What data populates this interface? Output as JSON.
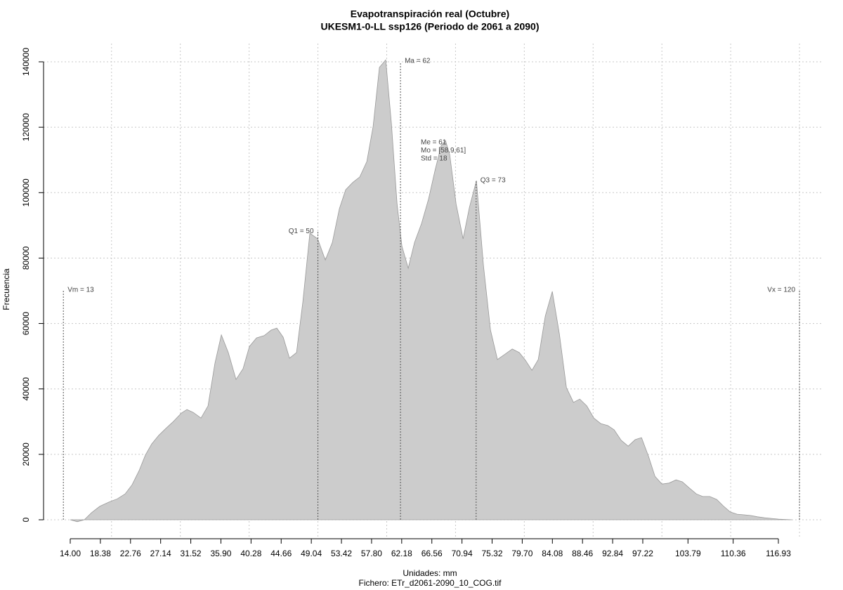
{
  "chart_data": {
    "type": "area",
    "title": "Evapotranspiración real (Octubre)",
    "subtitle": "UKESM1-0-LL ssp126 (Periodo de 2061 a 2090)",
    "x_label": "Unidades: mm",
    "caption": "Fichero: ETr_d2061-2090_10_COG.tif",
    "y_label": "Frecuencia",
    "color": "#cccccc",
    "line_color": "#999999",
    "grid": true,
    "x": [
      14.0,
      15.02,
      16.04,
      17.06,
      18.29,
      19.62,
      20.84,
      21.97,
      22.99,
      24.01,
      24.93,
      25.85,
      26.87,
      27.89,
      29.02,
      30.14,
      30.96,
      31.88,
      33.0,
      34.02,
      35.04,
      35.96,
      36.98,
      38.1,
      39.12,
      40.05,
      41.07,
      42.19,
      43.21,
      44.03,
      44.95,
      45.87,
      46.89,
      47.81,
      48.83,
      49.96,
      51.08,
      52.1,
      53.12,
      54.04,
      55.06,
      56.08,
      57.11,
      58.02,
      58.94,
      59.86,
      60.68,
      61.5,
      62.21,
      63.13,
      64.05,
      65.07,
      66.09,
      67.01,
      67.93,
      68.55,
      69.16,
      70.08,
      71.1,
      72.02,
      73.04,
      74.06,
      75.08,
      76.1,
      77.12,
      78.25,
      79.27,
      80.19,
      81.11,
      82.03,
      83.05,
      84.07,
      85.09,
      86.12,
      87.14,
      88.06,
      89.08,
      90.1,
      91.12,
      92.14,
      93.06,
      94.08,
      95.1,
      96.12,
      97.04,
      98.07,
      98.99,
      100.01,
      101.03,
      102.05,
      102.97,
      103.99,
      105.01,
      105.93,
      106.95,
      107.97,
      108.89,
      109.91,
      110.94,
      111.96,
      112.88,
      113.9,
      114.92,
      115.94,
      116.96,
      118.9
    ],
    "values": [
      0,
      -600,
      0,
      2100,
      4100,
      5400,
      6400,
      7900,
      10700,
      15000,
      19800,
      23200,
      25800,
      27900,
      30100,
      32600,
      33700,
      32800,
      31100,
      34800,
      47900,
      56500,
      51100,
      42900,
      46200,
      53000,
      55600,
      56300,
      58000,
      58600,
      55800,
      49400,
      51100,
      66600,
      87600,
      85900,
      79400,
      84800,
      95100,
      100900,
      103100,
      104800,
      109500,
      120200,
      138300,
      140600,
      121300,
      96600,
      83700,
      76900,
      84800,
      90600,
      98100,
      106700,
      114400,
      115900,
      111600,
      96600,
      85900,
      95500,
      103700,
      77700,
      58000,
      49000,
      50500,
      52200,
      51100,
      48700,
      45700,
      49000,
      62300,
      69800,
      56900,
      40400,
      35900,
      36900,
      34800,
      31100,
      29400,
      28800,
      27500,
      24300,
      22500,
      24500,
      25100,
      19300,
      13300,
      10900,
      11200,
      12200,
      11600,
      9700,
      7900,
      7100,
      7100,
      6200,
      4300,
      2400,
      1700,
      1500,
      1300,
      900,
      600,
      400,
      200,
      0
    ],
    "xlim": [
      14.0,
      116.93
    ],
    "xticks": [
      {
        "value": 14.0,
        "label": "14.00"
      },
      18.38,
      22.76,
      27.14,
      31.52,
      {
        "value": 35.9,
        "label": "35.90"
      },
      40.28,
      44.66,
      49.04,
      53.42,
      {
        "value": 57.8,
        "label": "57.80"
      },
      62.18,
      66.56,
      70.94,
      75.32,
      {
        "value": 79.7,
        "label": "79.70"
      },
      84.08,
      88.46,
      92.84,
      97.22,
      103.79,
      110.36,
      116.93
    ],
    "xgrid": [
      20,
      30,
      40,
      50,
      60,
      70,
      80,
      90,
      100,
      110,
      120
    ],
    "ylim": [
      0,
      140000
    ],
    "yticks": [
      0,
      20000,
      40000,
      60000,
      80000,
      100000,
      120000,
      140000
    ],
    "annotations": [
      {
        "label": "Vm = 13",
        "x": 13,
        "y": 70000
      },
      {
        "label": "Q1 = 50",
        "x": 50,
        "y": 88000
      },
      {
        "label": "Ma = 62",
        "x": 62,
        "y": 140000
      },
      {
        "label": "Q3 = 73",
        "x": 73,
        "y": 103500
      },
      {
        "label": "Vx = 120",
        "x": 120,
        "y": 70000
      }
    ],
    "stats": [
      "Me = 61",
      "Mo = [58.9,61]",
      "Std = 18"
    ]
  }
}
